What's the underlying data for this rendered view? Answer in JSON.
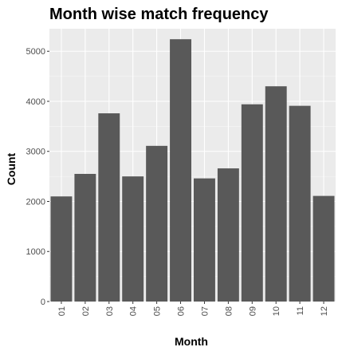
{
  "chart_data": {
    "type": "bar",
    "title": "Month wise match frequency",
    "xlabel": "Month",
    "ylabel": "Count",
    "categories": [
      "01",
      "02",
      "03",
      "04",
      "05",
      "06",
      "07",
      "08",
      "09",
      "10",
      "11",
      "12"
    ],
    "values": [
      2100,
      2550,
      3760,
      2500,
      3110,
      5240,
      2460,
      2660,
      3940,
      4300,
      3910,
      2110
    ],
    "ylim": [
      0,
      5450
    ],
    "yticks": [
      0,
      1000,
      2000,
      3000,
      4000,
      5000
    ],
    "grid": true,
    "legend": "none",
    "colors": {
      "bar": "#595959",
      "panel": "#ebebeb",
      "grid_major": "#ffffff",
      "tick_text": "#4d4d4d",
      "tick_mark": "#333333"
    }
  }
}
